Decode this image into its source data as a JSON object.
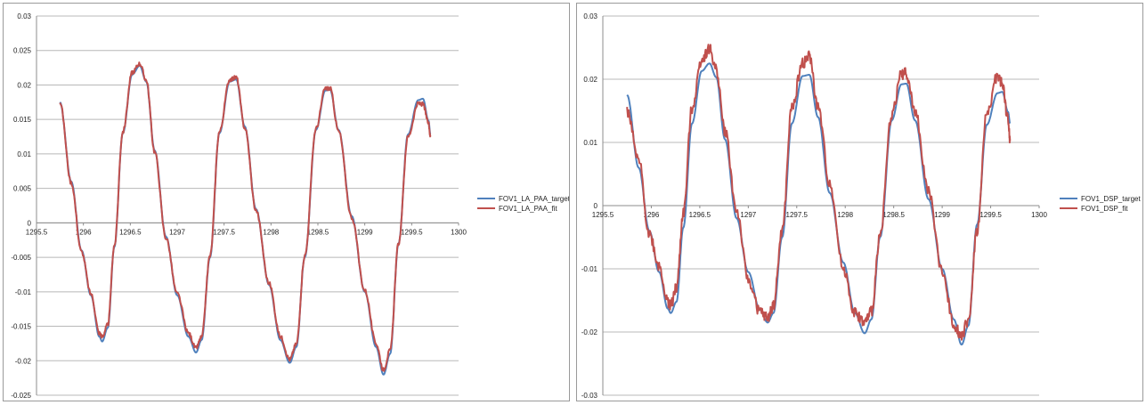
{
  "chart_data": [
    {
      "type": "line",
      "grid": true,
      "legend_position": "right",
      "xlim": [
        1295.5,
        1300
      ],
      "ylim": [
        -0.025,
        0.03
      ],
      "x_ticks": [
        "1295.5",
        "1296",
        "1296.5",
        "1297",
        "1297.5",
        "1298",
        "1298.5",
        "1299",
        "1299.5",
        "1300"
      ],
      "y_ticks": [
        "0.03",
        "0.025",
        "0.02",
        "0.015",
        "0.01",
        "0.005",
        "0",
        "-0.005",
        "-0.01",
        "-0.015",
        "-0.02",
        "-0.025"
      ],
      "series": [
        {
          "name": "FOV1_LA_PAA_target",
          "color": "#4f81bd",
          "points": [
            [
              1295.75,
              0.0175
            ],
            [
              1295.87,
              0.006
            ],
            [
              1295.98,
              -0.004
            ],
            [
              1296.08,
              -0.0105
            ],
            [
              1296.17,
              -0.0165
            ],
            [
              1296.2,
              -0.0172
            ],
            [
              1296.26,
              -0.0152
            ],
            [
              1296.33,
              -0.0035
            ],
            [
              1296.42,
              0.013
            ],
            [
              1296.52,
              0.0215
            ],
            [
              1296.6,
              0.0228
            ],
            [
              1296.67,
              0.0205
            ],
            [
              1296.76,
              0.0105
            ],
            [
              1296.88,
              -0.002
            ],
            [
              1297.0,
              -0.0105
            ],
            [
              1297.12,
              -0.0165
            ],
            [
              1297.2,
              -0.0188
            ],
            [
              1297.26,
              -0.017
            ],
            [
              1297.35,
              -0.005
            ],
            [
              1297.45,
              0.013
            ],
            [
              1297.56,
              0.0205
            ],
            [
              1297.63,
              0.0208
            ],
            [
              1297.72,
              0.014
            ],
            [
              1297.84,
              0.002
            ],
            [
              1297.98,
              -0.009
            ],
            [
              1298.1,
              -0.017
            ],
            [
              1298.2,
              -0.0203
            ],
            [
              1298.27,
              -0.018
            ],
            [
              1298.36,
              -0.005
            ],
            [
              1298.48,
              0.0135
            ],
            [
              1298.58,
              0.0192
            ],
            [
              1298.63,
              0.0193
            ],
            [
              1298.72,
              0.0135
            ],
            [
              1298.86,
              0.001
            ],
            [
              1299.0,
              -0.01
            ],
            [
              1299.12,
              -0.018
            ],
            [
              1299.2,
              -0.022
            ],
            [
              1299.27,
              -0.019
            ],
            [
              1299.36,
              -0.003
            ],
            [
              1299.46,
              0.0128
            ],
            [
              1299.57,
              0.0178
            ],
            [
              1299.62,
              0.018
            ],
            [
              1299.68,
              0.0148
            ],
            [
              1299.7,
              0.0128
            ]
          ]
        },
        {
          "name": "FOV1_LA_PAA_fit",
          "color": "#c0504d",
          "points": [
            [
              1295.75,
              0.0175
            ],
            [
              1295.87,
              0.0058
            ],
            [
              1295.98,
              -0.0042
            ],
            [
              1296.08,
              -0.0103
            ],
            [
              1296.17,
              -0.016
            ],
            [
              1296.2,
              -0.0165
            ],
            [
              1296.26,
              -0.0148
            ],
            [
              1296.33,
              -0.0033
            ],
            [
              1296.42,
              0.0132
            ],
            [
              1296.52,
              0.0218
            ],
            [
              1296.6,
              0.0231
            ],
            [
              1296.67,
              0.0207
            ],
            [
              1296.76,
              0.0103
            ],
            [
              1296.88,
              -0.0022
            ],
            [
              1297.0,
              -0.0103
            ],
            [
              1297.12,
              -0.016
            ],
            [
              1297.2,
              -0.0182
            ],
            [
              1297.26,
              -0.0166
            ],
            [
              1297.35,
              -0.0048
            ],
            [
              1297.45,
              0.0132
            ],
            [
              1297.56,
              0.0208
            ],
            [
              1297.63,
              0.0211
            ],
            [
              1297.72,
              0.0138
            ],
            [
              1297.84,
              0.0018
            ],
            [
              1297.98,
              -0.0088
            ],
            [
              1298.1,
              -0.0165
            ],
            [
              1298.2,
              -0.0198
            ],
            [
              1298.27,
              -0.0176
            ],
            [
              1298.36,
              -0.0048
            ],
            [
              1298.48,
              0.0137
            ],
            [
              1298.58,
              0.0195
            ],
            [
              1298.63,
              0.0195
            ],
            [
              1298.72,
              0.0133
            ],
            [
              1298.86,
              0.0008
            ],
            [
              1299.0,
              -0.0098
            ],
            [
              1299.12,
              -0.0175
            ],
            [
              1299.2,
              -0.0213
            ],
            [
              1299.27,
              -0.0185
            ],
            [
              1299.36,
              -0.003
            ],
            [
              1299.46,
              0.0125
            ],
            [
              1299.57,
              0.0173
            ],
            [
              1299.62,
              0.0172
            ],
            [
              1299.68,
              0.0145
            ],
            [
              1299.7,
              0.0125
            ]
          ]
        }
      ]
    },
    {
      "type": "line",
      "grid": true,
      "legend_position": "right",
      "xlim": [
        1295.5,
        1300
      ],
      "ylim": [
        -0.03,
        0.03
      ],
      "x_ticks": [
        "1295.5",
        "1296",
        "1296.5",
        "1297",
        "1297.5",
        "1298",
        "1298.5",
        "1299",
        "1299.5",
        "1300"
      ],
      "y_ticks": [
        "0.03",
        "0.02",
        "0.01",
        "0",
        "-0.01",
        "-0.02",
        "-0.03"
      ],
      "series": [
        {
          "name": "FOV1_DSP_target",
          "color": "#4f81bd",
          "points": [
            [
              1295.75,
              0.0175
            ],
            [
              1295.87,
              0.006
            ],
            [
              1295.98,
              -0.004
            ],
            [
              1296.08,
              -0.0105
            ],
            [
              1296.17,
              -0.0163
            ],
            [
              1296.2,
              -0.017
            ],
            [
              1296.26,
              -0.0152
            ],
            [
              1296.33,
              -0.0035
            ],
            [
              1296.42,
              0.013
            ],
            [
              1296.52,
              0.0213
            ],
            [
              1296.6,
              0.0225
            ],
            [
              1296.67,
              0.0203
            ],
            [
              1296.76,
              0.0105
            ],
            [
              1296.88,
              -0.002
            ],
            [
              1297.0,
              -0.0105
            ],
            [
              1297.12,
              -0.0165
            ],
            [
              1297.2,
              -0.0185
            ],
            [
              1297.26,
              -0.017
            ],
            [
              1297.35,
              -0.005
            ],
            [
              1297.45,
              0.013
            ],
            [
              1297.56,
              0.0205
            ],
            [
              1297.63,
              0.0207
            ],
            [
              1297.72,
              0.014
            ],
            [
              1297.84,
              0.002
            ],
            [
              1297.98,
              -0.009
            ],
            [
              1298.1,
              -0.017
            ],
            [
              1298.2,
              -0.0202
            ],
            [
              1298.27,
              -0.018
            ],
            [
              1298.36,
              -0.005
            ],
            [
              1298.48,
              0.0135
            ],
            [
              1298.58,
              0.0192
            ],
            [
              1298.63,
              0.0193
            ],
            [
              1298.72,
              0.0135
            ],
            [
              1298.86,
              0.001
            ],
            [
              1299.0,
              -0.01
            ],
            [
              1299.12,
              -0.018
            ],
            [
              1299.2,
              -0.022
            ],
            [
              1299.27,
              -0.019
            ],
            [
              1299.36,
              -0.003
            ],
            [
              1299.46,
              0.0128
            ],
            [
              1299.57,
              0.0178
            ],
            [
              1299.62,
              0.018
            ],
            [
              1299.68,
              0.0148
            ],
            [
              1299.7,
              0.013
            ]
          ]
        },
        {
          "name": "FOV1_DSP_fit",
          "color": "#c0504d",
          "points": [
            [
              1295.75,
              0.0148
            ],
            [
              1295.87,
              0.007
            ],
            [
              1295.98,
              -0.0045
            ],
            [
              1296.08,
              -0.0095
            ],
            [
              1296.17,
              -0.0152
            ],
            [
              1296.2,
              -0.0158
            ],
            [
              1296.26,
              -0.013
            ],
            [
              1296.33,
              -0.0012
            ],
            [
              1296.42,
              0.0155
            ],
            [
              1296.52,
              0.0232
            ],
            [
              1296.6,
              0.0248
            ],
            [
              1296.67,
              0.0215
            ],
            [
              1296.76,
              0.0118
            ],
            [
              1296.88,
              -0.0008
            ],
            [
              1297.0,
              -0.0118
            ],
            [
              1297.12,
              -0.0168
            ],
            [
              1297.2,
              -0.0178
            ],
            [
              1297.26,
              -0.0158
            ],
            [
              1297.35,
              -0.004
            ],
            [
              1297.45,
              0.0155
            ],
            [
              1297.56,
              0.0225
            ],
            [
              1297.63,
              0.0236
            ],
            [
              1297.72,
              0.0155
            ],
            [
              1297.84,
              0.0035
            ],
            [
              1297.98,
              -0.01
            ],
            [
              1298.1,
              -0.017
            ],
            [
              1298.2,
              -0.0185
            ],
            [
              1298.27,
              -0.0168
            ],
            [
              1298.36,
              -0.0045
            ],
            [
              1298.48,
              0.0145
            ],
            [
              1298.58,
              0.0208
            ],
            [
              1298.63,
              0.021
            ],
            [
              1298.72,
              0.0148
            ],
            [
              1298.86,
              0.0022
            ],
            [
              1299.0,
              -0.0105
            ],
            [
              1299.12,
              -0.0188
            ],
            [
              1299.2,
              -0.0205
            ],
            [
              1299.27,
              -0.0182
            ],
            [
              1299.36,
              -0.004
            ],
            [
              1299.46,
              0.0145
            ],
            [
              1299.57,
              0.0205
            ],
            [
              1299.62,
              0.0192
            ],
            [
              1299.68,
              0.0135
            ],
            [
              1299.7,
              0.0102
            ]
          ]
        }
      ]
    }
  ]
}
